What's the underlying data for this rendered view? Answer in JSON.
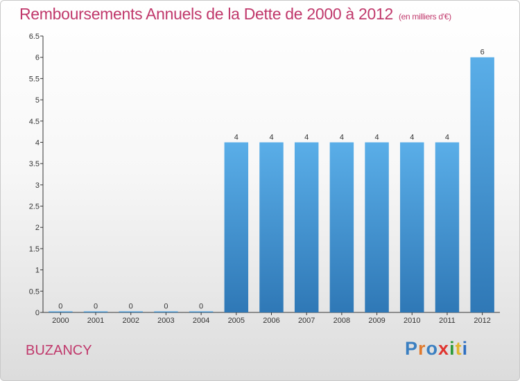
{
  "title": "Remboursements Annuels de la Dette de 2000 à 2012",
  "title_unit": "(en milliers d'€)",
  "place_name": "BUZANCY",
  "brand": {
    "letters": [
      "P",
      "r",
      "o",
      "x",
      "i",
      "t",
      "i"
    ],
    "colors": [
      "#3a7fc1",
      "#e07a2e",
      "#3a7fc1",
      "#e0342f",
      "#2e9b3a",
      "#e0b52e",
      "#2e6fc1"
    ]
  },
  "colors": {
    "title": "#c0386b",
    "bar_top": "#5aaee8",
    "bar_bottom": "#2f78b6"
  },
  "chart_data": {
    "type": "bar",
    "title": "Remboursements Annuels de la Dette de 2000 à 2012",
    "subtitle": "(en milliers d'€)",
    "xlabel": "",
    "ylabel": "",
    "categories": [
      "2000",
      "2001",
      "2002",
      "2003",
      "2004",
      "2005",
      "2006",
      "2007",
      "2008",
      "2009",
      "2010",
      "2011",
      "2012"
    ],
    "values": [
      0,
      0,
      0,
      0,
      0,
      4,
      4,
      4,
      4,
      4,
      4,
      4,
      6
    ],
    "value_labels": [
      "0",
      "0",
      "0",
      "0",
      "0",
      "4",
      "4",
      "4",
      "4",
      "4",
      "4",
      "4",
      "6"
    ],
    "ylim": [
      0,
      6.5
    ],
    "yticks": [
      0,
      0.5,
      1,
      1.5,
      2,
      2.5,
      3,
      3.5,
      4,
      4.5,
      5,
      5.5,
      6,
      6.5
    ],
    "ytick_labels": [
      "0",
      "0.5",
      "1",
      "1.5",
      "2",
      "2.5",
      "3",
      "3.5",
      "4",
      "4.5",
      "5",
      "5.5",
      "6",
      "6.5"
    ],
    "grid": false,
    "legend": "none"
  }
}
